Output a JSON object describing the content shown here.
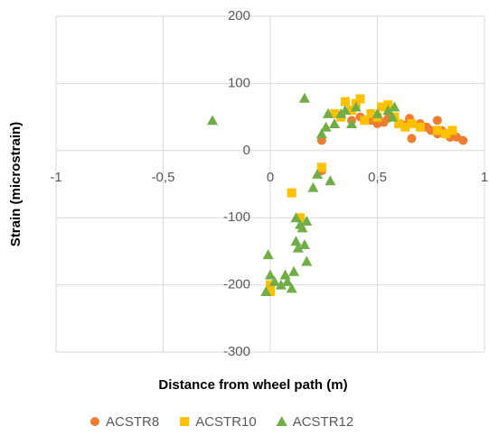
{
  "chart_data": {
    "type": "scatter",
    "x_label": "Distance from wheel path (m)",
    "y_label": "Strain (microstrain)",
    "xlim": [
      -1,
      1
    ],
    "xticks": [
      -1,
      {
        "value": -0.5,
        "label": "-0,5"
      },
      0,
      {
        "value": 0.5,
        "label": "0,5"
      },
      1
    ],
    "ylim": [
      -300,
      200
    ],
    "yticks": [
      -300,
      -200,
      -100,
      0,
      100,
      200
    ],
    "grid": true,
    "legend": "bottom",
    "series": [
      {
        "name": "ACSTR8",
        "color": "#ed7d31",
        "marker": "circle",
        "x": [
          0.24,
          0.24,
          0.38,
          0.42,
          0.47,
          0.5,
          0.53,
          0.55,
          0.6,
          0.63,
          0.65,
          0.66,
          0.7,
          0.73,
          0.75,
          0.78,
          0.78,
          0.8,
          0.84,
          0.87,
          0.9
        ],
        "values": [
          15,
          -30,
          45,
          50,
          45,
          40,
          42,
          48,
          40,
          38,
          48,
          18,
          40,
          35,
          30,
          45,
          25,
          30,
          20,
          20,
          15
        ]
      },
      {
        "name": "ACSTR10",
        "color": "#ffc000",
        "marker": "square",
        "x": [
          0.0,
          0.0,
          0.1,
          0.14,
          0.24,
          0.3,
          0.33,
          0.35,
          0.38,
          0.4,
          0.42,
          0.44,
          0.47,
          0.5,
          0.52,
          0.55,
          0.58,
          0.6,
          0.63,
          0.66,
          0.7,
          0.78,
          0.82,
          0.85
        ],
        "values": [
          -200,
          -210,
          -63,
          -100,
          -25,
          55,
          50,
          73,
          60,
          70,
          77,
          45,
          55,
          50,
          65,
          68,
          50,
          40,
          35,
          40,
          35,
          30,
          25,
          30
        ]
      },
      {
        "name": "ACSTR12",
        "color": "#70ad47",
        "marker": "triangle",
        "x": [
          -0.27,
          -0.02,
          -0.01,
          0.0,
          0.02,
          0.05,
          0.07,
          0.08,
          0.1,
          0.11,
          0.12,
          0.12,
          0.13,
          0.14,
          0.15,
          0.16,
          0.17,
          0.17,
          0.2,
          0.22,
          0.24,
          0.26,
          0.27,
          0.28,
          0.3,
          0.33,
          0.35,
          0.38,
          0.4,
          0.5,
          0.55,
          0.57,
          0.58,
          0.16
        ],
        "values": [
          45,
          -210,
          -155,
          -185,
          -195,
          -200,
          -185,
          -195,
          -205,
          -180,
          -100,
          -135,
          -145,
          -110,
          -115,
          -140,
          -165,
          -105,
          -55,
          -35,
          25,
          35,
          55,
          -45,
          40,
          55,
          60,
          40,
          65,
          55,
          60,
          50,
          65,
          78
        ]
      }
    ]
  }
}
